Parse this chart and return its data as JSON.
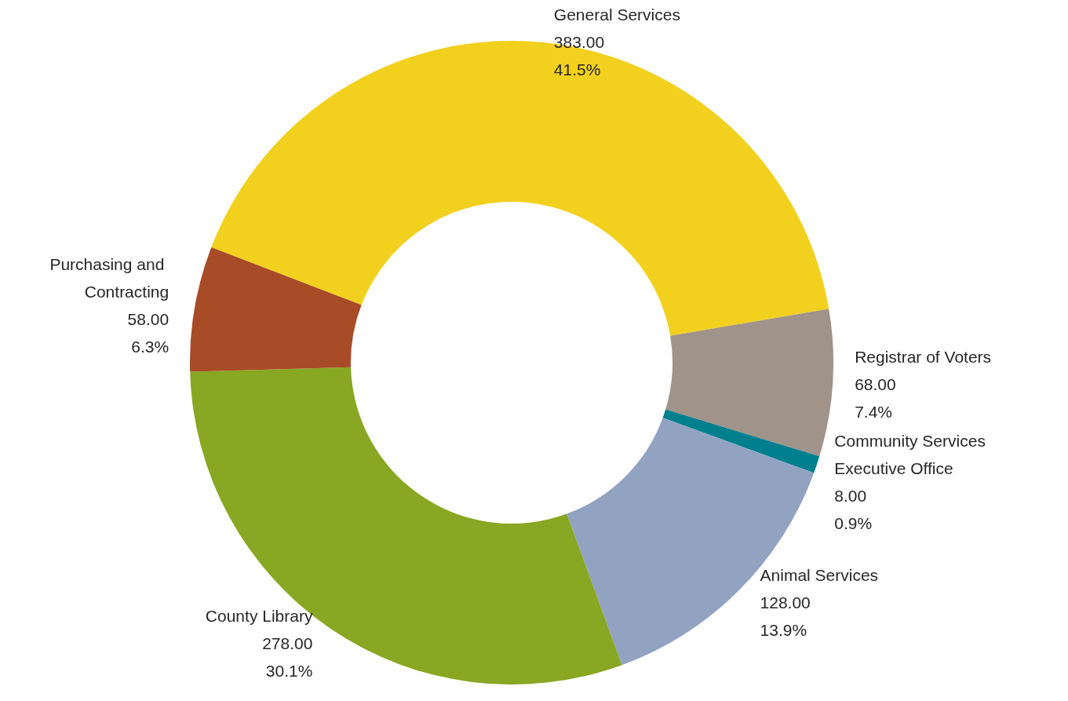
{
  "chart_data": {
    "type": "donut",
    "categories": [
      "General Services",
      "Registrar of Voters",
      "Community Services Executive Office",
      "Animal Services",
      "County Library",
      "Purchasing and Contracting"
    ],
    "values": [
      383,
      68,
      8,
      128,
      278,
      58
    ],
    "value_labels": [
      "383.00\n41.5%",
      "68.00\n7.4%",
      "8.00\n0.9%",
      "128.00\n13.9%",
      "278.00\n30.1%",
      "58.00\n6.3%"
    ],
    "colors": [
      "#f2d01e",
      "#a0938a",
      "#007f8f",
      "#91a3c1",
      "#88a722",
      "#a84b27"
    ],
    "legend": false
  }
}
